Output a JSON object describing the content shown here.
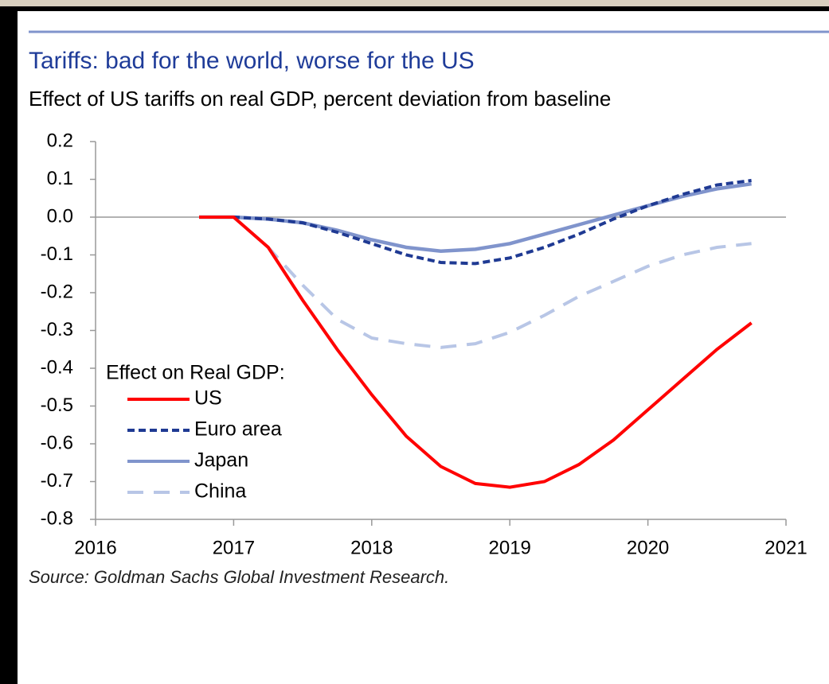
{
  "chart_data": {
    "type": "line",
    "title": "Tariffs: bad for the world, worse for the US",
    "subtitle": "Effect of US tariffs on real GDP, percent deviation from baseline",
    "source": "Source: Goldman Sachs Global Investment Research.",
    "legend_title": "Effect on Real GDP:",
    "x": [
      2016.75,
      2017,
      2017.25,
      2017.5,
      2017.75,
      2018,
      2018.25,
      2018.5,
      2018.75,
      2019,
      2019.25,
      2019.5,
      2019.75,
      2020,
      2020.25,
      2020.5,
      2020.75
    ],
    "series": [
      {
        "name": "US",
        "color": "#ff0000",
        "dash": "solid",
        "values": [
          0,
          0,
          -0.08,
          -0.22,
          -0.35,
          -0.47,
          -0.58,
          -0.66,
          -0.705,
          -0.715,
          -0.7,
          -0.655,
          -0.59,
          -0.51,
          -0.43,
          -0.35,
          -0.28
        ]
      },
      {
        "name": "Euro area",
        "color": "#1f3a93",
        "dash": "dashed",
        "values": [
          0,
          0,
          -0.005,
          -0.015,
          -0.04,
          -0.07,
          -0.1,
          -0.12,
          -0.123,
          -0.108,
          -0.08,
          -0.045,
          -0.005,
          0.03,
          0.06,
          0.085,
          0.097
        ]
      },
      {
        "name": "Japan",
        "color": "#8094cc",
        "dash": "solid",
        "values": [
          0,
          0,
          -0.005,
          -0.015,
          -0.035,
          -0.06,
          -0.08,
          -0.09,
          -0.085,
          -0.07,
          -0.045,
          -0.02,
          0.005,
          0.03,
          0.055,
          0.075,
          0.088
        ]
      },
      {
        "name": "China",
        "color": "#b8c6e6",
        "dash": "longdash",
        "values": [
          0,
          0,
          -0.08,
          -0.18,
          -0.27,
          -0.32,
          -0.335,
          -0.345,
          -0.335,
          -0.305,
          -0.26,
          -0.21,
          -0.17,
          -0.13,
          -0.1,
          -0.08,
          -0.07
        ]
      }
    ],
    "xlim": [
      2016,
      2021
    ],
    "xticks": [
      2016,
      2017,
      2018,
      2019,
      2020,
      2021
    ],
    "ylim": [
      -0.8,
      0.2
    ],
    "yticks": [
      0.2,
      0.1,
      {
        "value": 0,
        "label": "0.0"
      },
      -0.1,
      -0.2,
      -0.3,
      -0.4,
      -0.5,
      -0.6,
      -0.7,
      -0.8
    ],
    "legend": "lower left"
  }
}
